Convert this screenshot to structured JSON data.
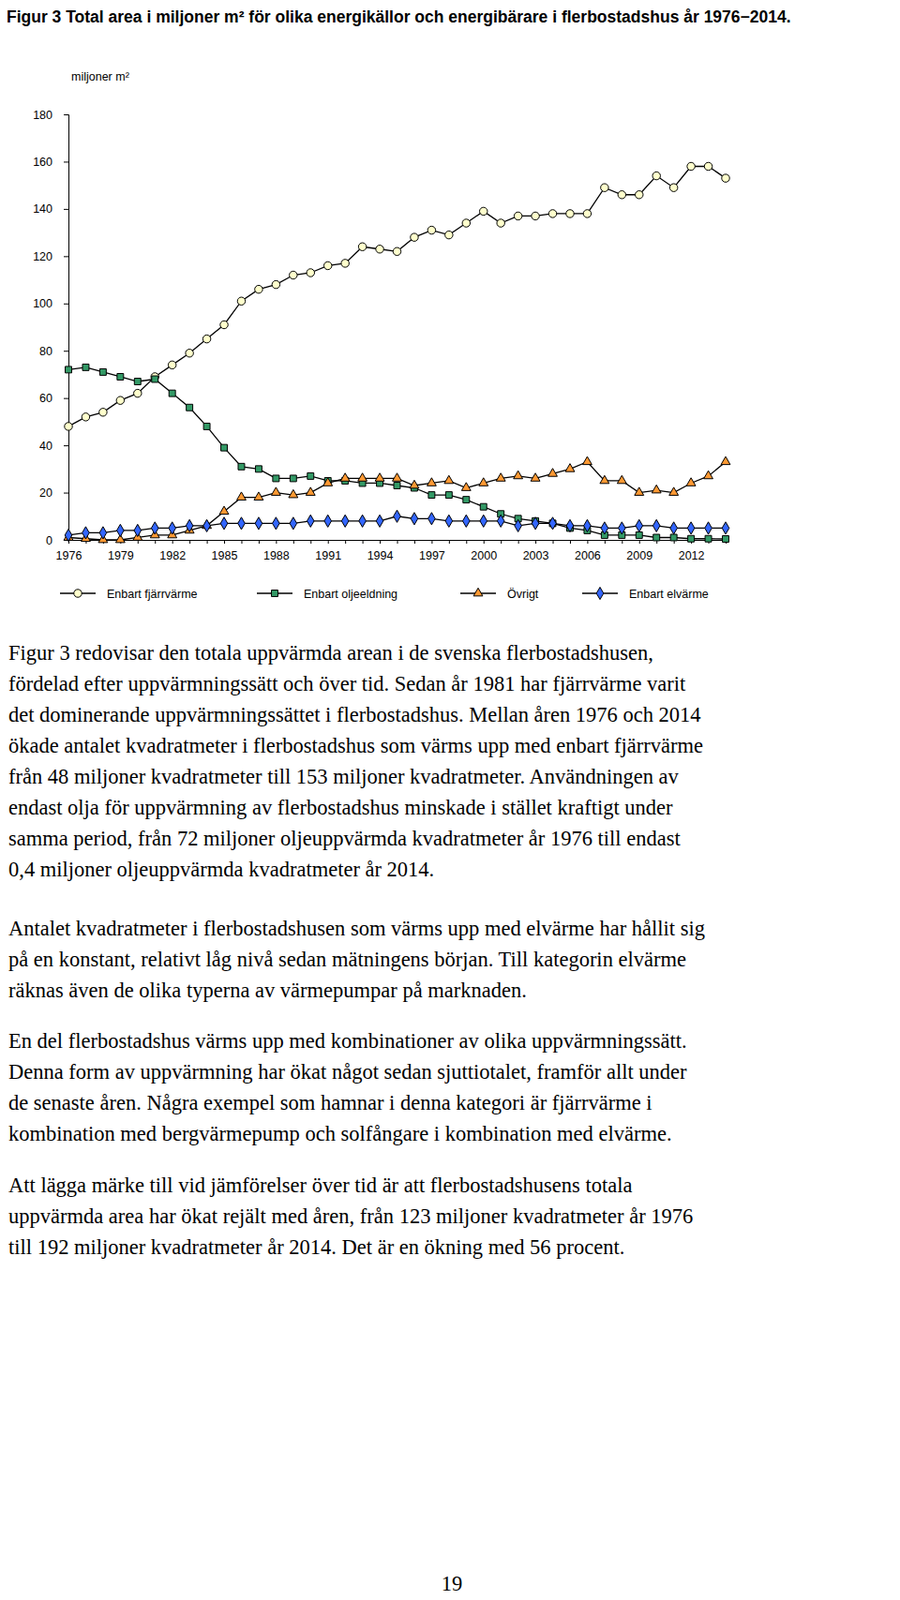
{
  "chart_data": {
    "type": "line",
    "title": "Figur 3 Total area i miljoner m² för olika energikällor och energibärare i flerbostadshus år 1976−2014.",
    "y_label": "miljoner m²",
    "categories": [
      "1976",
      null,
      null,
      "1979",
      null,
      null,
      "1982",
      null,
      null,
      "1985",
      null,
      null,
      "1988",
      null,
      null,
      "1991",
      null,
      null,
      "1994",
      null,
      null,
      "1997",
      null,
      null,
      "2000",
      null,
      null,
      "2003",
      null,
      null,
      "2006",
      null,
      null,
      "2009",
      null,
      null,
      "2012",
      null,
      null
    ],
    "series": [
      {
        "name": "Enbart fjärrvärme",
        "color": "#ffffcc",
        "marker": "circle",
        "values": [
          48,
          52,
          54,
          59,
          62,
          69,
          74,
          79,
          85,
          91,
          101,
          106,
          108,
          112,
          113,
          116,
          117,
          124,
          123,
          122,
          128,
          131,
          129,
          134,
          139,
          134,
          137,
          137,
          138,
          138,
          138,
          149,
          146,
          146,
          154,
          149,
          158,
          158,
          153
        ]
      },
      {
        "name": "Enbart oljeeldning",
        "color": "#339966",
        "marker": "square",
        "values": [
          72,
          73,
          71,
          69,
          67,
          68,
          62,
          56,
          48,
          39,
          31,
          30,
          26,
          26,
          27,
          25,
          25,
          24,
          24,
          23,
          22,
          19,
          19,
          17,
          14,
          11,
          9,
          8,
          7,
          5,
          4,
          2,
          2,
          2,
          1,
          1,
          0.5,
          0.5,
          0.4
        ]
      },
      {
        "name": "Övrigt",
        "color": "#ff9933",
        "marker": "triangle",
        "values": [
          1,
          0.5,
          0,
          0,
          1,
          2,
          2,
          4,
          6,
          12,
          18,
          18,
          20,
          19,
          20,
          24,
          26,
          26,
          26,
          26,
          23,
          24,
          25,
          22,
          24,
          26,
          27,
          26,
          28,
          30,
          33,
          25,
          25,
          20,
          21,
          20,
          24,
          27,
          33
        ]
      },
      {
        "name": "Enbart elvärme",
        "color": "#3366ff",
        "marker": "diamond",
        "values": [
          2,
          3,
          3,
          4,
          4,
          5,
          5,
          6,
          6,
          7,
          7,
          7,
          7,
          7,
          8,
          8,
          8,
          8,
          8,
          10,
          9,
          9,
          8,
          8,
          8,
          8,
          6,
          7,
          7,
          6,
          6,
          5,
          5,
          6,
          6,
          5,
          5,
          5,
          5
        ]
      }
    ],
    "ylim": [
      0,
      180
    ],
    "yticks": [
      0,
      20,
      40,
      60,
      80,
      100,
      120,
      140,
      160,
      180
    ],
    "grid": false,
    "legend": "bottom"
  },
  "document": {
    "paragraphs": [
      [
        "Figur 3 redovisar den totala uppvärmda arean i de svenska flerbostadshusen,",
        "fördelad efter uppvärmningssätt och över tid. Sedan år 1981 har fjärrvärme varit",
        "det dominerande uppvärmningssättet i flerbostadshus. Mellan åren 1976 och 2014",
        "ökade antalet kvadratmeter i flerbostadshus som värms upp med enbart fjärrvärme",
        "från 48 miljoner kvadratmeter till 153 miljoner kvadratmeter. Användningen av",
        "endast olja för uppvärmning av flerbostadshus minskade i stället kraftigt under",
        "samma period, från 72 miljoner oljeuppvärmda kvadratmeter år 1976 till endast",
        "0,4 miljoner oljeuppvärmda kvadratmeter år 2014."
      ],
      [
        "Antalet kvadratmeter i flerbostadshusen som värms upp med elvärme har hållit sig",
        "på en konstant, relativt låg nivå sedan mätningens början. Till kategorin elvärme",
        "räknas även de olika typerna av värmepumpar på marknaden."
      ],
      [
        "En del flerbostadshus värms upp med kombinationer av olika uppvärmningssätt.",
        "Denna form av uppvärmning har ökat något sedan sjuttiotalet, framför allt under",
        "de senaste åren. Några exempel som hamnar i denna kategori är fjärrvärme i",
        "kombination med bergvärmepump och solfångare i kombination med elvärme."
      ],
      [
        "Att lägga märke till vid jämförelser över tid är att flerbostadshusens totala",
        "uppvärmda area har ökat rejält med åren, från 123 miljoner kvadratmeter år 1976",
        "till 192 miljoner kvadratmeter år 2014. Det är en ökning med 56 procent."
      ]
    ],
    "page_number": "19"
  }
}
